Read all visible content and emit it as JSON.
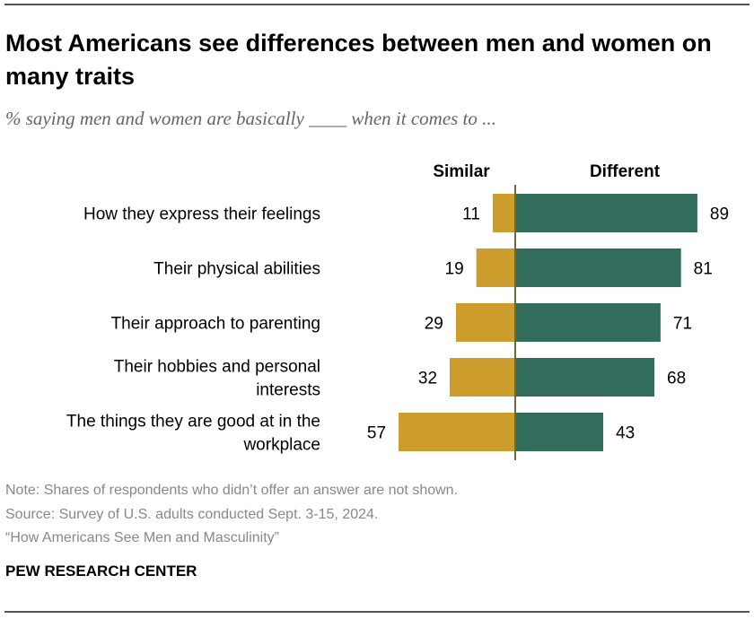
{
  "chart_data": {
    "type": "bar",
    "orientation": "horizontal-diverging",
    "title": "Most Americans see differences between men and women on many traits",
    "subtitle": "% saying men and women are basically ____ when it comes to ...",
    "categories": [
      [
        "How they express their feelings"
      ],
      [
        "Their physical abilities"
      ],
      [
        "Their approach to parenting"
      ],
      [
        "Their hobbies and personal",
        "interests"
      ],
      [
        "The things they are good at in the",
        "workplace"
      ]
    ],
    "series": [
      {
        "name": "Similar",
        "values": [
          11,
          19,
          29,
          32,
          57
        ],
        "color": "#CC9C2C"
      },
      {
        "name": "Different",
        "values": [
          89,
          81,
          71,
          68,
          43
        ],
        "color": "#316C5C"
      }
    ],
    "xlim": [
      -60,
      100
    ],
    "grid": false,
    "axis_color": "#6B6A3A"
  },
  "notes": {
    "note": "Note: Shares of respondents who didn’t offer an answer are not shown.",
    "source": "Source: Survey of U.S. adults conducted Sept. 3-15, 2024.",
    "report": "“How Americans See Men and Masculinity”"
  },
  "brand": "PEW RESEARCH CENTER"
}
